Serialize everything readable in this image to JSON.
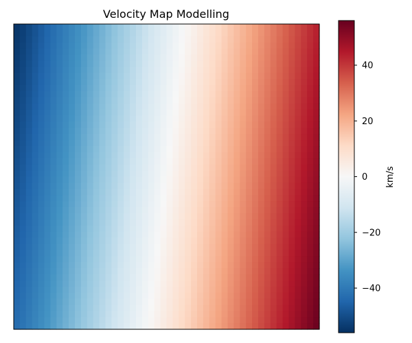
{
  "chart_data": {
    "type": "heatmap",
    "title": "Velocity Map Modelling",
    "colorbar": {
      "label": "km/s",
      "colormap": "RdBu_r",
      "range": [
        -56,
        56
      ],
      "ticks": [
        40,
        20,
        0,
        -20,
        -40
      ],
      "tick_labels": [
        "40",
        "20",
        "0",
        "−20",
        "−40"
      ],
      "colors": [
        "#053061",
        "#2166ac",
        "#4393c3",
        "#92c5de",
        "#d1e5f0",
        "#f7f7f7",
        "#fddbc7",
        "#f4a582",
        "#d6604d",
        "#b2182b",
        "#67001f"
      ]
    },
    "axes": {
      "x_ticks_shown": false,
      "y_ticks_shown": false,
      "grid": false
    },
    "field": {
      "description_model": "linear gradient",
      "corner_values": {
        "top_left": -56,
        "top_right": 44,
        "bottom_left": -44,
        "bottom_right": 56
      }
    }
  }
}
